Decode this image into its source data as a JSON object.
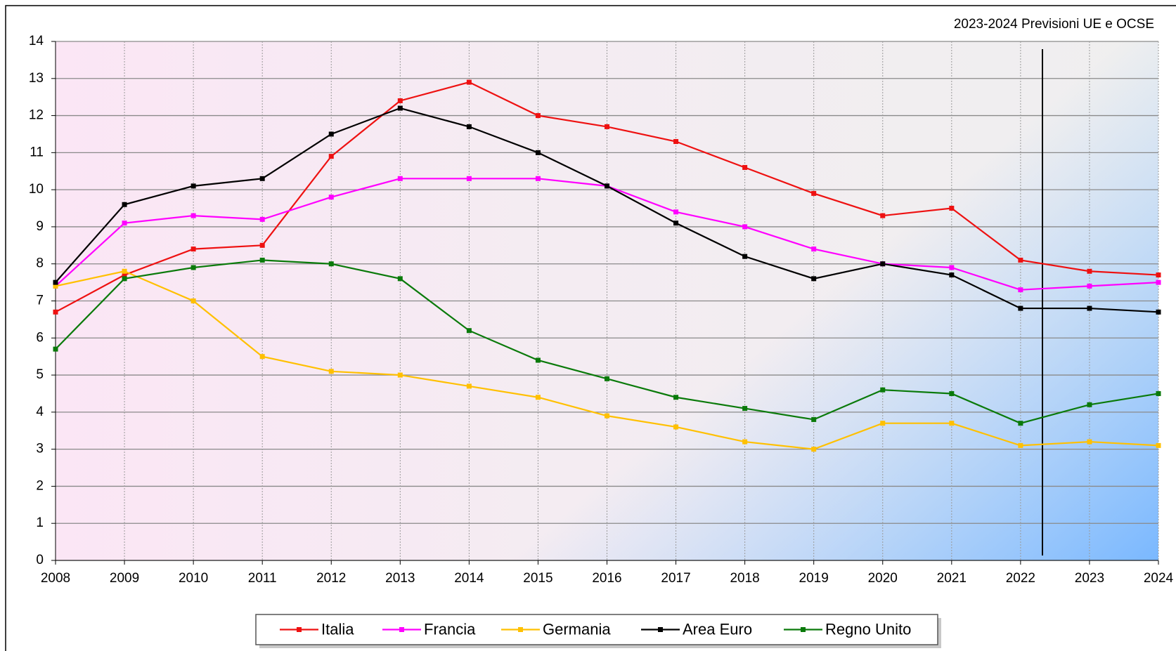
{
  "chart_data": {
    "type": "line",
    "annotation": "2023-2024 Previsioni UE e OCSE",
    "x": [
      2008,
      2009,
      2010,
      2011,
      2012,
      2013,
      2014,
      2015,
      2016,
      2017,
      2018,
      2019,
      2020,
      2021,
      2022,
      2023,
      2024
    ],
    "xlim": [
      2008,
      2024
    ],
    "xticks": [
      2008,
      2009,
      2010,
      2011,
      2012,
      2013,
      2014,
      2015,
      2016,
      2017,
      2018,
      2019,
      2020,
      2021,
      2022,
      2023,
      2024
    ],
    "ylim": [
      0,
      14
    ],
    "yticks": [
      0,
      1,
      2,
      3,
      4,
      5,
      6,
      7,
      8,
      9,
      10,
      11,
      12,
      13,
      14
    ],
    "grid": true,
    "legend": "bottom",
    "series": [
      {
        "name": "Italia",
        "color": "#ee1111",
        "values": [
          6.7,
          7.7,
          8.4,
          8.5,
          10.9,
          12.4,
          12.9,
          12.0,
          11.7,
          11.3,
          10.6,
          9.9,
          9.3,
          9.5,
          8.1,
          7.8,
          7.7
        ]
      },
      {
        "name": "Francia",
        "color": "#ff00ff",
        "values": [
          7.4,
          9.1,
          9.3,
          9.2,
          9.8,
          10.3,
          10.3,
          10.3,
          10.1,
          9.4,
          9.0,
          8.4,
          8.0,
          7.9,
          7.3,
          7.4,
          7.5
        ]
      },
      {
        "name": "Germania",
        "color": "#ffc000",
        "values": [
          7.4,
          7.8,
          7.0,
          5.5,
          5.1,
          5.0,
          4.7,
          4.4,
          3.9,
          3.6,
          3.2,
          3.0,
          3.7,
          3.7,
          3.1,
          3.2,
          3.1
        ]
      },
      {
        "name": "Area Euro",
        "color": "#000000",
        "values": [
          7.5,
          9.6,
          10.1,
          10.3,
          11.5,
          12.2,
          11.7,
          11.0,
          10.1,
          9.1,
          8.2,
          7.6,
          8.0,
          7.7,
          6.8,
          6.8,
          6.7
        ]
      },
      {
        "name": "Regno Unito",
        "color": "#0a7a0a",
        "values": [
          5.7,
          7.6,
          7.9,
          8.1,
          8.0,
          7.6,
          6.2,
          5.4,
          4.9,
          4.4,
          4.1,
          3.8,
          4.6,
          4.5,
          3.7,
          4.2,
          4.5
        ]
      }
    ]
  }
}
